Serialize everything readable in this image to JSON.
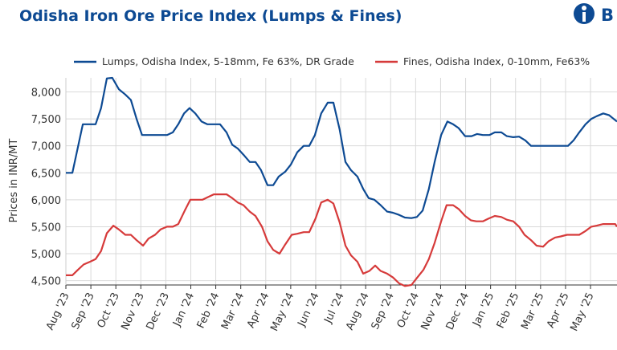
{
  "chart_data": {
    "type": "line",
    "title": "Odisha Iron Ore Price Index (Lumps & Fines)",
    "logo_text": "B",
    "y_label": "Prices in INR/MT",
    "grid": true,
    "legend": "top",
    "xlim": [
      0,
      22.06
    ],
    "ylim": [
      4420,
      8260
    ],
    "yticks": [
      {
        "value": 4500,
        "label": "4,500"
      },
      {
        "value": 5000,
        "label": "5,000"
      },
      {
        "value": 5500,
        "label": "5,500"
      },
      {
        "value": 6000,
        "label": "6,000"
      },
      {
        "value": 6500,
        "label": "6,500"
      },
      {
        "value": 7000,
        "label": "7,000"
      },
      {
        "value": 7500,
        "label": "7,500"
      },
      {
        "value": 8000,
        "label": "8,000"
      }
    ],
    "xticks": [
      {
        "value": 0,
        "label": "Aug '23"
      },
      {
        "value": 1,
        "label": "Sep '23"
      },
      {
        "value": 2,
        "label": "Oct '23"
      },
      {
        "value": 3,
        "label": "Nov '23"
      },
      {
        "value": 4,
        "label": "Dec '23"
      },
      {
        "value": 5,
        "label": "Jan '24"
      },
      {
        "value": 6,
        "label": "Feb '24"
      },
      {
        "value": 7,
        "label": "Mar '24"
      },
      {
        "value": 8,
        "label": "Apr '24"
      },
      {
        "value": 9,
        "label": "May '24"
      },
      {
        "value": 10,
        "label": "Jun '24"
      },
      {
        "value": 11,
        "label": "Jul '24"
      },
      {
        "value": 12,
        "label": "Aug '24"
      },
      {
        "value": 13,
        "label": "Sep '24"
      },
      {
        "value": 14,
        "label": "Oct '24"
      },
      {
        "value": 15,
        "label": "Nov '24"
      },
      {
        "value": 16,
        "label": "Dec '24"
      },
      {
        "value": 17,
        "label": "Jan '25"
      },
      {
        "value": 18,
        "label": "Feb '25"
      },
      {
        "value": 19,
        "label": "Mar '25"
      },
      {
        "value": 20,
        "label": "Apr '25"
      },
      {
        "value": 21,
        "label": "May '25"
      }
    ],
    "series": [
      {
        "name": "Lumps, Odisha Index, 5-18mm, Fe 63%, DR Grade",
        "color": "#0d4a93",
        "x": [
          0,
          0.26,
          0.68,
          1.19,
          1.41,
          1.64,
          1.86,
          2.12,
          2.38,
          2.6,
          2.83,
          3.05,
          3.79,
          4.05,
          4.28,
          4.5,
          4.73,
          4.95,
          5.18,
          5.43,
          5.66,
          6.17,
          6.43,
          6.66,
          6.88,
          7.14,
          7.36,
          7.59,
          7.81,
          8.07,
          8.3,
          8.52,
          8.78,
          9.0,
          9.26,
          9.52,
          9.74,
          9.97,
          10.22,
          10.48,
          10.71,
          10.96,
          11.19,
          11.41,
          11.67,
          11.9,
          12.12,
          12.35,
          12.6,
          12.86,
          13.09,
          13.34,
          13.57,
          13.83,
          14.05,
          14.28,
          14.53,
          14.76,
          15.02,
          15.27,
          15.5,
          15.72,
          15.98,
          16.24,
          16.46,
          16.69,
          16.95,
          17.17,
          17.43,
          17.65,
          17.91,
          18.14,
          18.39,
          18.62,
          19.87,
          20.1,
          20.32,
          20.55,
          20.8,
          21.03,
          21.25,
          21.51,
          21.74,
          22.06
        ],
        "values": [
          6500,
          6500,
          7400,
          7400,
          7700,
          8250,
          8260,
          8050,
          7950,
          7850,
          7500,
          7200,
          7200,
          7200,
          7250,
          7400,
          7600,
          7700,
          7600,
          7450,
          7400,
          7400,
          7250,
          7020,
          6950,
          6820,
          6700,
          6700,
          6550,
          6270,
          6270,
          6430,
          6520,
          6650,
          6880,
          7000,
          7000,
          7200,
          7600,
          7800,
          7800,
          7300,
          6700,
          6550,
          6430,
          6200,
          6030,
          6000,
          5900,
          5780,
          5760,
          5720,
          5670,
          5660,
          5680,
          5800,
          6200,
          6700,
          7200,
          7450,
          7400,
          7330,
          7180,
          7180,
          7220,
          7200,
          7200,
          7250,
          7250,
          7180,
          7160,
          7170,
          7100,
          7000,
          7000,
          7000,
          7100,
          7250,
          7400,
          7500,
          7550,
          7600,
          7570,
          7450
        ]
      },
      {
        "name": "Fines, Odisha Index, 0-10mm, Fe63%",
        "color": "#d63a3a",
        "x": [
          0,
          0.26,
          0.48,
          0.71,
          0.96,
          1.19,
          1.41,
          1.64,
          1.9,
          2.12,
          2.38,
          2.6,
          2.83,
          3.09,
          3.31,
          3.57,
          3.79,
          4.05,
          4.28,
          4.5,
          4.76,
          4.98,
          5.47,
          5.69,
          5.92,
          6.43,
          6.66,
          6.88,
          7.11,
          7.36,
          7.59,
          7.85,
          8.07,
          8.3,
          8.55,
          8.78,
          9.04,
          9.26,
          9.52,
          9.74,
          9.99,
          10.22,
          10.48,
          10.71,
          10.96,
          11.19,
          11.41,
          11.67,
          11.9,
          12.15,
          12.38,
          12.6,
          12.86,
          13.09,
          13.34,
          13.57,
          13.83,
          14.05,
          14.31,
          14.53,
          14.76,
          15.02,
          15.24,
          15.5,
          15.72,
          15.98,
          16.21,
          16.43,
          16.69,
          16.91,
          17.17,
          17.43,
          17.65,
          17.91,
          18.14,
          18.36,
          18.62,
          18.84,
          19.1,
          19.32,
          19.58,
          19.81,
          20.06,
          20.55,
          20.8,
          21.03,
          21.25,
          21.51,
          21.99,
          22.06
        ],
        "values": [
          4600,
          4600,
          4700,
          4800,
          4850,
          4900,
          5050,
          5380,
          5520,
          5450,
          5350,
          5350,
          5250,
          5150,
          5280,
          5350,
          5450,
          5500,
          5500,
          5550,
          5800,
          6000,
          6000,
          6050,
          6100,
          6100,
          6030,
          5950,
          5900,
          5780,
          5700,
          5500,
          5230,
          5070,
          5000,
          5170,
          5350,
          5370,
          5400,
          5400,
          5650,
          5950,
          6000,
          5930,
          5580,
          5150,
          4970,
          4850,
          4630,
          4680,
          4780,
          4680,
          4630,
          4560,
          4450,
          4400,
          4420,
          4550,
          4700,
          4900,
          5200,
          5600,
          5900,
          5900,
          5830,
          5700,
          5620,
          5600,
          5600,
          5650,
          5700,
          5680,
          5630,
          5600,
          5500,
          5350,
          5250,
          5150,
          5130,
          5230,
          5300,
          5320,
          5350,
          5350,
          5420,
          5500,
          5520,
          5550,
          5550,
          5500
        ]
      }
    ]
  }
}
